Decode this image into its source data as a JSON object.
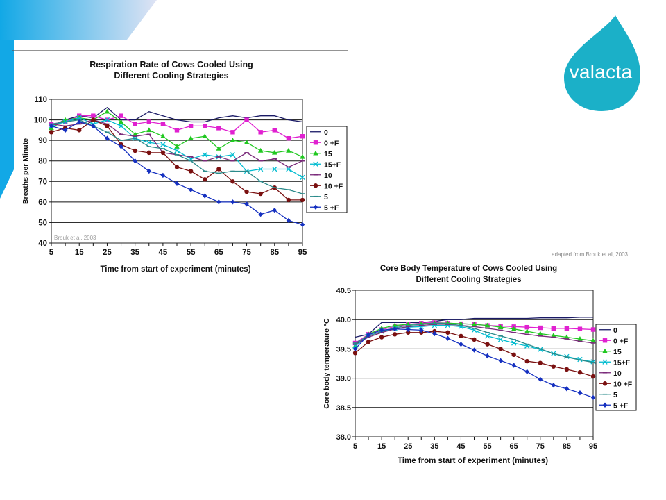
{
  "logo": {
    "text": "valacta",
    "color": "#1bb0c8"
  },
  "credit_note": "adapted from Brouk et al, 2003",
  "colors": {
    "accent": "#19aee8",
    "background": "#ffffff",
    "plot_bg": "#ffffff"
  },
  "chart_data": [
    {
      "type": "line",
      "title_lines": [
        "Respiration Rate of Cows Cooled Using",
        "Different Cooling Strategies"
      ],
      "xlabel": "Time from start of experiment (minutes)",
      "ylabel": "Breaths per Minute",
      "ylim": [
        40,
        110
      ],
      "y_ticks": [
        40,
        50,
        60,
        70,
        80,
        90,
        100,
        110
      ],
      "y_tick_labels": [
        "40",
        "50",
        "60",
        "70",
        "80",
        "90",
        "100",
        "110"
      ],
      "x": [
        5,
        10,
        15,
        20,
        25,
        30,
        35,
        40,
        45,
        50,
        55,
        60,
        65,
        70,
        75,
        80,
        85,
        90,
        95
      ],
      "x_tick_labels": [
        "5",
        "15",
        "25",
        "35",
        "45",
        "55",
        "65",
        "75",
        "85",
        "95"
      ],
      "grid": "horizontal",
      "legend_position": "right",
      "annotation": "Brouk et al, 2003",
      "series": [
        {
          "name": "0",
          "color": "#1a1a66",
          "marker": "none",
          "values": [
            97,
            100,
            102,
            101,
            106,
            100,
            100,
            104,
            102,
            100,
            99,
            99,
            101,
            102,
            101,
            102,
            102,
            100,
            99
          ]
        },
        {
          "name": "0 +F",
          "color": "#e020d0",
          "marker": "square",
          "values": [
            98,
            99,
            102,
            102,
            100,
            102,
            98,
            99,
            98,
            95,
            97,
            97,
            96,
            94,
            100,
            94,
            95,
            91,
            92
          ]
        },
        {
          "name": "15",
          "color": "#20c820",
          "marker": "triangle",
          "values": [
            96,
            100,
            101,
            100,
            104,
            99,
            93,
            95,
            92,
            87,
            91,
            92,
            86,
            90,
            89,
            85,
            84,
            85,
            82
          ]
        },
        {
          "name": "15+F",
          "color": "#00bcd0",
          "marker": "x",
          "values": [
            97,
            99,
            101,
            98,
            100,
            97,
            91,
            89,
            88,
            85,
            81,
            83,
            82,
            83,
            75,
            76,
            76,
            76,
            72
          ]
        },
        {
          "name": "10",
          "color": "#7a2a7a",
          "marker": "dash",
          "values": [
            98,
            97,
            98,
            100,
            98,
            93,
            92,
            93,
            84,
            83,
            82,
            80,
            82,
            80,
            84,
            80,
            81,
            77,
            80
          ]
        },
        {
          "name": "10 +F",
          "color": "#7a1010",
          "marker": "circle",
          "values": [
            94,
            96,
            95,
            100,
            97,
            88,
            85,
            84,
            84,
            77,
            75,
            71,
            76,
            70,
            65,
            64,
            67,
            61,
            61
          ]
        },
        {
          "name": "5",
          "color": "#2a8a8a",
          "marker": "dash",
          "values": [
            98,
            99,
            100,
            97,
            94,
            90,
            91,
            87,
            86,
            83,
            80,
            75,
            74,
            75,
            75,
            70,
            67,
            66,
            64
          ]
        },
        {
          "name": "5 +F",
          "color": "#1530c0",
          "marker": "diamond",
          "values": [
            97,
            95,
            99,
            97,
            91,
            87,
            80,
            75,
            73,
            69,
            66,
            63,
            60,
            60,
            59,
            54,
            56,
            51,
            49
          ]
        }
      ]
    },
    {
      "type": "line",
      "title_lines": [
        "Core Body Temperature of Cows Cooled Using",
        "Different Cooling Strategies"
      ],
      "xlabel": "Time from start of experiment (minutes)",
      "ylabel": "Core body temperature °C",
      "ylim": [
        38.0,
        40.5
      ],
      "y_ticks": [
        38.0,
        38.5,
        39.0,
        39.5,
        40.0,
        40.5
      ],
      "y_tick_labels": [
        "38.0",
        "38.5",
        "39.0",
        "39.5",
        "40.0",
        "40.5"
      ],
      "x": [
        5,
        10,
        15,
        20,
        25,
        30,
        35,
        40,
        45,
        50,
        55,
        60,
        65,
        70,
        75,
        80,
        85,
        90,
        95
      ],
      "x_tick_labels": [
        "5",
        "15",
        "25",
        "35",
        "45",
        "55",
        "65",
        "75",
        "85",
        "95"
      ],
      "grid": "horizontal",
      "legend_position": "right",
      "series": [
        {
          "name": "0",
          "color": "#1a1a66",
          "marker": "none",
          "values": [
            39.7,
            39.75,
            39.95,
            39.95,
            39.95,
            39.95,
            39.97,
            40.0,
            40.0,
            40.02,
            40.02,
            40.02,
            40.02,
            40.02,
            40.03,
            40.03,
            40.03,
            40.04,
            40.04
          ]
        },
        {
          "name": "0 +F",
          "color": "#e020d0",
          "marker": "square",
          "values": [
            39.6,
            39.75,
            39.83,
            39.88,
            39.92,
            39.94,
            39.95,
            39.94,
            39.93,
            39.92,
            39.9,
            39.89,
            39.88,
            39.87,
            39.86,
            39.85,
            39.85,
            39.84,
            39.83
          ]
        },
        {
          "name": "15",
          "color": "#20c820",
          "marker": "triangle",
          "values": [
            39.55,
            39.75,
            39.85,
            39.9,
            39.92,
            39.93,
            39.94,
            39.94,
            39.93,
            39.92,
            39.9,
            39.87,
            39.84,
            39.8,
            39.76,
            39.73,
            39.7,
            39.67,
            39.64
          ]
        },
        {
          "name": "15+F",
          "color": "#00bcd0",
          "marker": "x",
          "values": [
            39.55,
            39.72,
            39.8,
            39.85,
            39.87,
            39.88,
            39.9,
            39.9,
            39.88,
            39.82,
            39.72,
            39.66,
            39.6,
            39.55,
            39.49,
            39.42,
            39.37,
            39.32,
            39.28
          ]
        },
        {
          "name": "10",
          "color": "#7a2a7a",
          "marker": "dash",
          "values": [
            39.58,
            39.7,
            39.78,
            39.84,
            39.88,
            39.9,
            39.92,
            39.92,
            39.9,
            39.88,
            39.85,
            39.82,
            39.78,
            39.75,
            39.72,
            39.7,
            39.67,
            39.63,
            39.6
          ]
        },
        {
          "name": "10 +F",
          "color": "#7a1010",
          "marker": "circle",
          "values": [
            39.43,
            39.62,
            39.7,
            39.75,
            39.78,
            39.78,
            39.8,
            39.78,
            39.72,
            39.66,
            39.58,
            39.5,
            39.4,
            39.29,
            39.26,
            39.2,
            39.15,
            39.1,
            39.03
          ]
        },
        {
          "name": "5",
          "color": "#2a8a8a",
          "marker": "dash",
          "values": [
            39.6,
            39.72,
            39.8,
            39.86,
            39.9,
            39.92,
            39.94,
            39.93,
            39.9,
            39.85,
            39.78,
            39.72,
            39.66,
            39.58,
            39.5,
            39.42,
            39.36,
            39.31,
            39.27
          ]
        },
        {
          "name": "5 +F",
          "color": "#1530c0",
          "marker": "diamond",
          "values": [
            39.5,
            39.74,
            39.82,
            39.84,
            39.83,
            39.82,
            39.76,
            39.68,
            39.58,
            39.48,
            39.38,
            39.3,
            39.22,
            39.11,
            38.98,
            38.88,
            38.82,
            38.75,
            38.67
          ]
        }
      ]
    }
  ]
}
